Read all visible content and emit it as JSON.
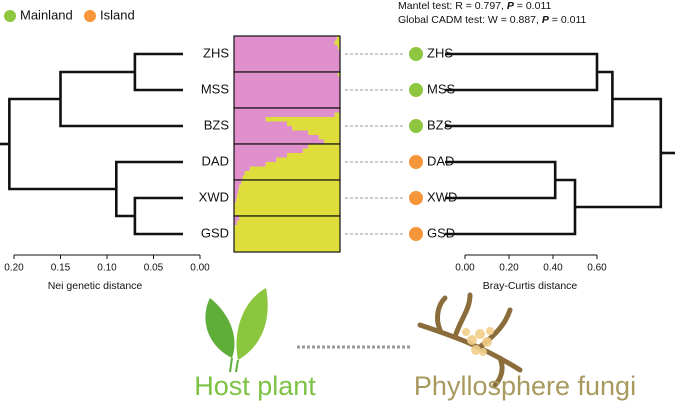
{
  "legend": [
    {
      "label": "Mainland",
      "color": "#8dc63f"
    },
    {
      "label": "Island",
      "color": "#f7953a"
    }
  ],
  "stats": {
    "mantel": [
      "Mantel test: R = 0.797, ",
      "P",
      " = 0.011"
    ],
    "cadm": [
      "Global CADM test: W = 0.887, ",
      "P",
      " = 0.011"
    ]
  },
  "populations": [
    {
      "name": "ZHS",
      "group": 0,
      "yellow": [
        0.03,
        0.05,
        0.02,
        0,
        0,
        0,
        0,
        0
      ]
    },
    {
      "name": "MSS",
      "group": 0,
      "yellow": [
        0.02,
        0,
        0,
        0,
        0,
        0,
        0,
        0
      ]
    },
    {
      "name": "BZS",
      "group": 0,
      "yellow": [
        0,
        0.05,
        0.7,
        0.5,
        0.45,
        0.3,
        0.2,
        0.15
      ]
    },
    {
      "name": "DAD",
      "group": 1,
      "yellow": [
        0.3,
        0.35,
        0.5,
        0.6,
        0.7,
        0.85,
        0.9,
        0.92
      ]
    },
    {
      "name": "XWD",
      "group": 1,
      "yellow": [
        0.93,
        0.95,
        0.96,
        0.97,
        0.98,
        1,
        1,
        1
      ]
    },
    {
      "name": "GSD",
      "group": 1,
      "yellow": [
        0.95,
        0.97,
        1,
        1,
        1,
        1,
        1,
        1
      ]
    }
  ],
  "structure_colors": [
    "#df8fcb",
    "#dedd3c"
  ],
  "left_tree": {
    "axis_label": "Nei genetic distance",
    "merge_heights": [
      0.07,
      0.15,
      0.07,
      0.09,
      0.205
    ],
    "ticks": [
      {
        "value": 0.2,
        "label": "0.20"
      },
      {
        "value": 0.15,
        "label": "0.15"
      },
      {
        "value": 0.1,
        "label": "0.10"
      },
      {
        "value": 0.05,
        "label": "0.05"
      },
      {
        "value": 0,
        "label": "0.00"
      }
    ]
  },
  "right_tree": {
    "axis_label": "Bray-Curtis distance",
    "merge_heights": [
      0.6,
      0.67,
      0.41,
      0.5,
      0.89
    ],
    "ticks": [
      {
        "value": 0,
        "label": "0.00"
      },
      {
        "value": 0.2,
        "label": "0.20"
      },
      {
        "value": 0.4,
        "label": "0.40"
      },
      {
        "value": 0.6,
        "label": "0.60"
      }
    ]
  },
  "bottom": {
    "left": "Host plant",
    "right": "Phyllosphere fungi"
  }
}
